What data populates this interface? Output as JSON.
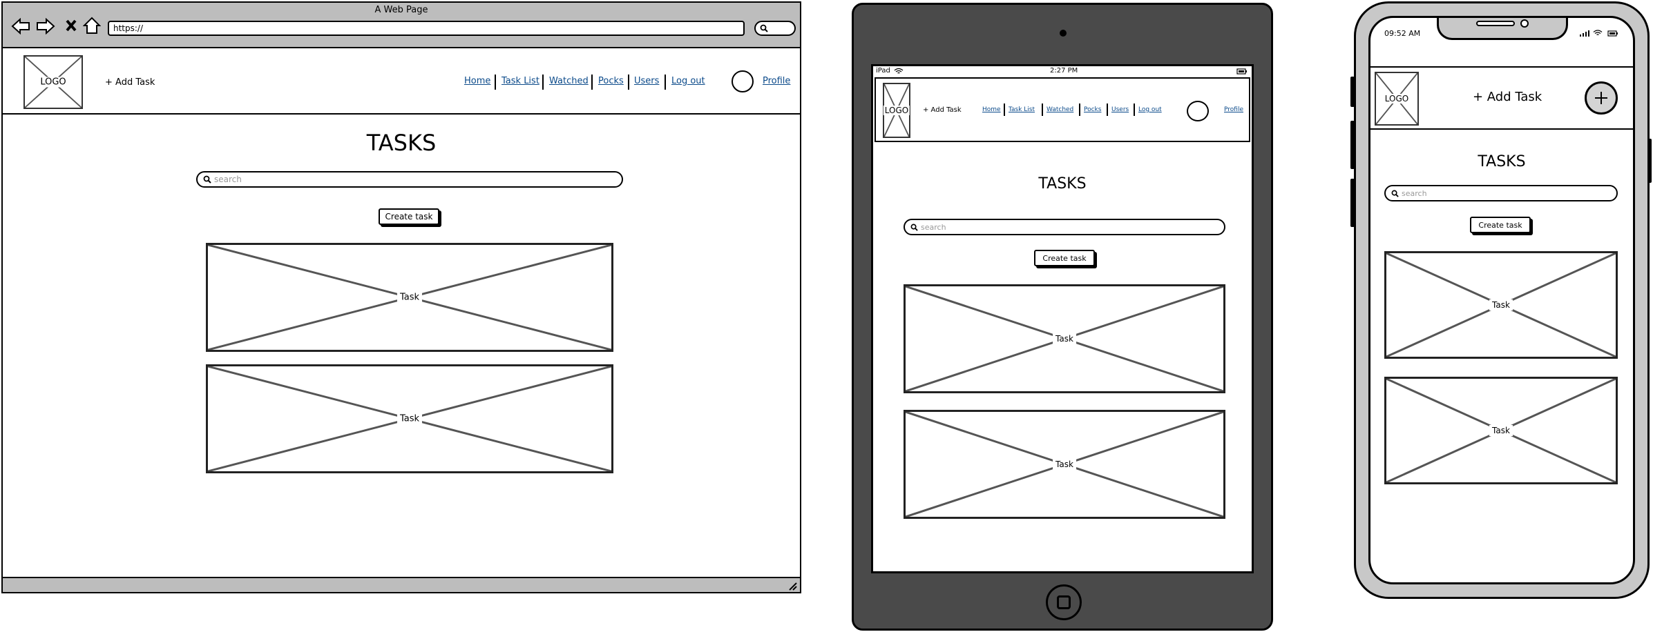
{
  "desktop": {
    "window_title": "A Web Page",
    "url": "https://",
    "logo": "LOGO",
    "add_task": "+ Add Task",
    "nav": [
      "Home",
      "Task List",
      "Watched",
      "Pocks",
      "Users",
      "Log out"
    ],
    "profile": "Profile",
    "page_title": "TASKS",
    "search_placeholder": "search",
    "create_button": "Create task",
    "cards": [
      "Task",
      "Task"
    ]
  },
  "tablet": {
    "device": "iPad",
    "time": "2:27 PM",
    "logo": "LOGO",
    "add_task": "+ Add Task",
    "nav": [
      "Home",
      "Task List",
      "Watched",
      "Pocks",
      "Users",
      "Log out"
    ],
    "profile": "Profile",
    "page_title": "TASKS",
    "search_placeholder": "search",
    "create_button": "Create task",
    "cards": [
      "Task",
      "Task"
    ]
  },
  "phone": {
    "time": "09:52 AM",
    "logo": "LOGO",
    "add_task": "+ Add Task",
    "page_title": "TASKS",
    "search_placeholder": "search",
    "create_button": "Create task",
    "cards": [
      "Task",
      "Task"
    ]
  },
  "colors": {
    "browser_chrome": "#bdbdbd",
    "tablet_body": "#4a4a4a",
    "phone_frame": "#c8c8c8",
    "link": "#0b4a8a"
  }
}
